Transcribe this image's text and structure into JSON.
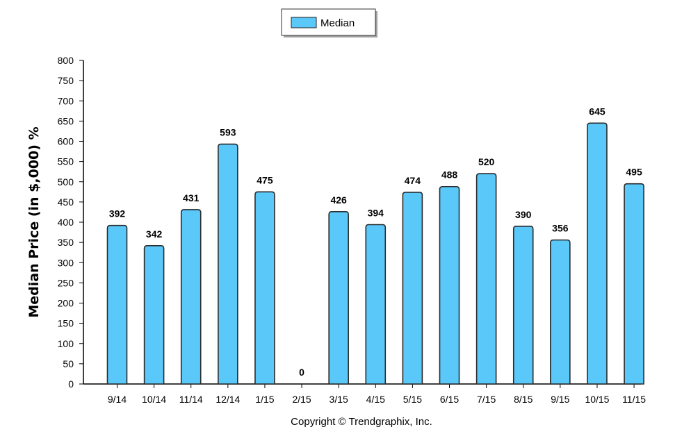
{
  "chart_data": {
    "type": "bar",
    "categories": [
      "9/14",
      "10/14",
      "11/14",
      "12/14",
      "1/15",
      "2/15",
      "3/15",
      "4/15",
      "5/15",
      "6/15",
      "7/15",
      "8/15",
      "9/15",
      "10/15",
      "11/15"
    ],
    "series": [
      {
        "name": "Median",
        "values": [
          392,
          342,
          431,
          593,
          475,
          0,
          426,
          394,
          474,
          488,
          520,
          390,
          356,
          645,
          495
        ]
      }
    ],
    "data_labels": [
      "392",
      "342",
      "431",
      "593",
      "475",
      "0",
      "426",
      "394",
      "474",
      "488",
      "520",
      "390",
      "356",
      "645",
      "495"
    ],
    "ylabel": "Median Price (in $,000) %",
    "xlabel": "",
    "ylim": [
      0,
      800
    ],
    "yticks": [
      0,
      50,
      100,
      150,
      200,
      250,
      300,
      350,
      400,
      450,
      500,
      550,
      600,
      650,
      700,
      750,
      800
    ],
    "grid": false,
    "legend_position": "top-center",
    "bar_color": "#5bc8fa",
    "bar_edge_color": "#2a2a2a"
  },
  "copyright": "Copyright © Trendgraphix, Inc."
}
